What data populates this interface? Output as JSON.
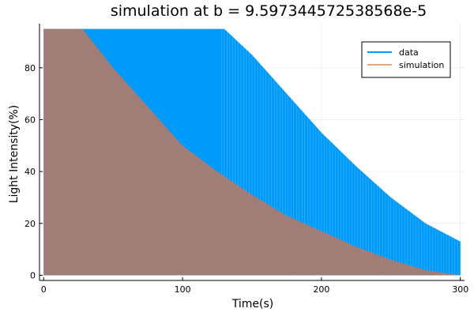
{
  "chart_data": {
    "type": "line",
    "title": "simulation at b = 9.597344572538568e-5",
    "xlabel": "Time(s)",
    "ylabel": "Light Intensity(%)",
    "xlim": [
      -3,
      303
    ],
    "ylim": [
      -2,
      97
    ],
    "xticks": [
      0,
      100,
      200,
      300
    ],
    "yticks": [
      0,
      20,
      40,
      60,
      80
    ],
    "grid": true,
    "legend_position": "top-right",
    "colors": {
      "data": "#009AFA",
      "simulation": "#E3A783",
      "overlap": "#A07E77"
    },
    "series": [
      {
        "name": "data",
        "style": "dense vertical oscillation between 0 and the upper envelope",
        "envelope_x": [
          0,
          130,
          150,
          175,
          200,
          225,
          250,
          275,
          300
        ],
        "envelope_y": [
          95,
          95,
          85,
          70,
          55,
          42,
          30,
          20,
          13
        ]
      },
      {
        "name": "simulation",
        "style": "dense vertical oscillation between 0 and the upper envelope",
        "envelope_x": [
          0,
          28,
          50,
          75,
          100,
          125,
          150,
          175,
          200,
          225,
          250,
          275,
          300
        ],
        "envelope_y": [
          95,
          95,
          80,
          65,
          50,
          40,
          31,
          23,
          17,
          11,
          6,
          2,
          0
        ]
      }
    ]
  }
}
